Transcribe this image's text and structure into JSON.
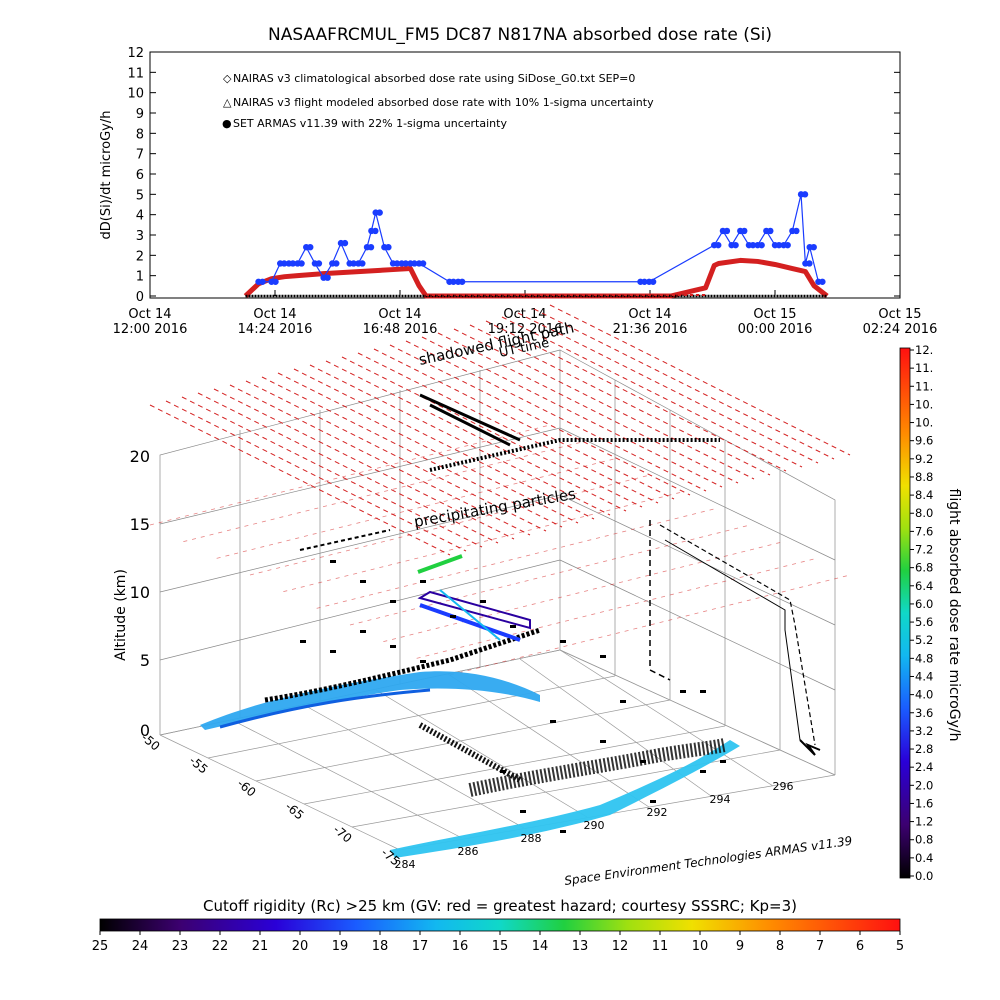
{
  "title": "NASAAFRCMUL_FM5 DC87 N817NA absorbed dose rate (Si)",
  "colors": {
    "climo": "#d42020",
    "model": "#000000",
    "armas": "#1a3cff",
    "flight_line": "#000000"
  },
  "chart_data": [
    {
      "type": "line",
      "ylabel": "dD(Si)/dt microGy/h",
      "ylim": [
        0,
        12
      ],
      "yticks": [
        "0",
        "1",
        "2",
        "3",
        "4",
        "5",
        "6",
        "7",
        "8",
        "9",
        "10",
        "11",
        "12"
      ],
      "xticks": [
        {
          "line1": "Oct 14",
          "line2": "12:00 2016"
        },
        {
          "line1": "Oct 14",
          "line2": "14:24 2016"
        },
        {
          "line1": "Oct 14",
          "line2": "16:48 2016"
        },
        {
          "line1": "Oct 14",
          "line2": "19:12 2016"
        },
        {
          "line1": "Oct 14",
          "line2": "21:36 2016"
        },
        {
          "line1": "Oct 15",
          "line2": "00:00 2016"
        },
        {
          "line1": "Oct 15",
          "line2": "02:24 2016"
        }
      ],
      "x_unit": "minutes after Oct 14 12:00",
      "xlim": [
        0,
        864
      ],
      "legend": [
        {
          "symbol": "◇",
          "label": "NAIRAS v3 climatological absorbed dose rate using SiDose_G0.txt SEP=0",
          "color": "#d42020"
        },
        {
          "symbol": "△",
          "label": "NAIRAS v3 flight modeled absorbed dose rate with 10% 1-sigma uncertainty",
          "color": "#000000"
        },
        {
          "symbol": "●",
          "label": "SET ARMAS v11.39 with 22% 1-sigma uncertainty",
          "color": "#1a3cff"
        }
      ],
      "series": [
        {
          "name": "NAIRAS v3 climatological absorbed dose rate using SiDose_G0.txt SEP=0",
          "x": [
            110,
            125,
            140,
            155,
            170,
            200,
            240,
            280,
            300,
            310,
            318,
            330,
            360,
            420,
            480,
            540,
            600,
            640,
            650,
            655,
            680,
            700,
            720,
            740,
            755,
            765,
            780
          ],
          "y": [
            0,
            0.6,
            0.85,
            0.95,
            1.0,
            1.1,
            1.2,
            1.3,
            1.35,
            0.5,
            0,
            0,
            0,
            0,
            0,
            0,
            0,
            0.4,
            1.5,
            1.6,
            1.75,
            1.7,
            1.55,
            1.35,
            1.2,
            0.5,
            0
          ]
        },
        {
          "name": "SET ARMAS v11.39 with 22% 1-sigma uncertainty",
          "x": [
            125,
            140,
            150,
            160,
            170,
            180,
            190,
            200,
            210,
            220,
            230,
            240,
            250,
            255,
            260,
            270,
            280,
            290,
            300,
            310,
            345,
            355,
            565,
            575,
            650,
            660,
            670,
            680,
            690,
            700,
            710,
            720,
            730,
            740,
            750,
            755,
            760,
            770
          ],
          "y": [
            0.7,
            0.7,
            1.6,
            1.6,
            1.6,
            2.4,
            1.6,
            0.9,
            1.6,
            2.6,
            1.6,
            1.6,
            2.4,
            3.2,
            4.1,
            2.4,
            1.6,
            1.6,
            1.6,
            1.6,
            0.7,
            0.7,
            0.7,
            0.7,
            2.5,
            3.2,
            2.5,
            3.2,
            2.5,
            2.5,
            3.2,
            2.5,
            2.5,
            3.2,
            5.0,
            1.6,
            2.4,
            0.7
          ]
        },
        {
          "name": "NAIRAS v3 flight modeled absorbed dose rate with 10% 1-sigma uncertainty",
          "x": [
            110,
            318,
            640,
            780
          ],
          "y": [
            0,
            0,
            0,
            0
          ]
        }
      ]
    },
    {
      "type": "scatter",
      "zlabel": "Altitude (km)",
      "zticks": [
        "0",
        "5",
        "10",
        "15",
        "20"
      ],
      "lat_ticks": [
        "-50",
        "-55",
        "-60",
        "-65",
        "-70",
        "-75"
      ],
      "lon_ticks": [
        "284",
        "286",
        "288",
        "290",
        "292",
        "294",
        "296"
      ],
      "annotations": [
        "shadowed flight path",
        "UT time",
        "precipitating particles"
      ],
      "credit": "Space Environment Technologies ARMAS v11.39",
      "colorbar_title": "flight absorbed dose rate microGy/h",
      "colorbar_ticks": [
        "0.0",
        "0.4",
        "0.8",
        "1.2",
        "1.6",
        "2.0",
        "2.4",
        "2.8",
        "3.2",
        "3.6",
        "4.0",
        "4.4",
        "4.8",
        "5.2",
        "5.6",
        "6.0",
        "6.4",
        "6.8",
        "7.2",
        "7.6",
        "8.0",
        "8.4",
        "8.8",
        "9.2",
        "9.6",
        "10.",
        "10.",
        "11.",
        "11.",
        "12."
      ]
    },
    {
      "type": "heatmap",
      "label": "Cutoff rigidity (Rc) >25 km (GV: red = greatest hazard; courtesy SSSRC; Kp=3)",
      "ticks": [
        "25",
        "24",
        "23",
        "22",
        "21",
        "20",
        "19",
        "18",
        "17",
        "16",
        "15",
        "14",
        "13",
        "12",
        "11",
        "10",
        "9",
        "8",
        "7",
        "6",
        "5"
      ]
    }
  ]
}
